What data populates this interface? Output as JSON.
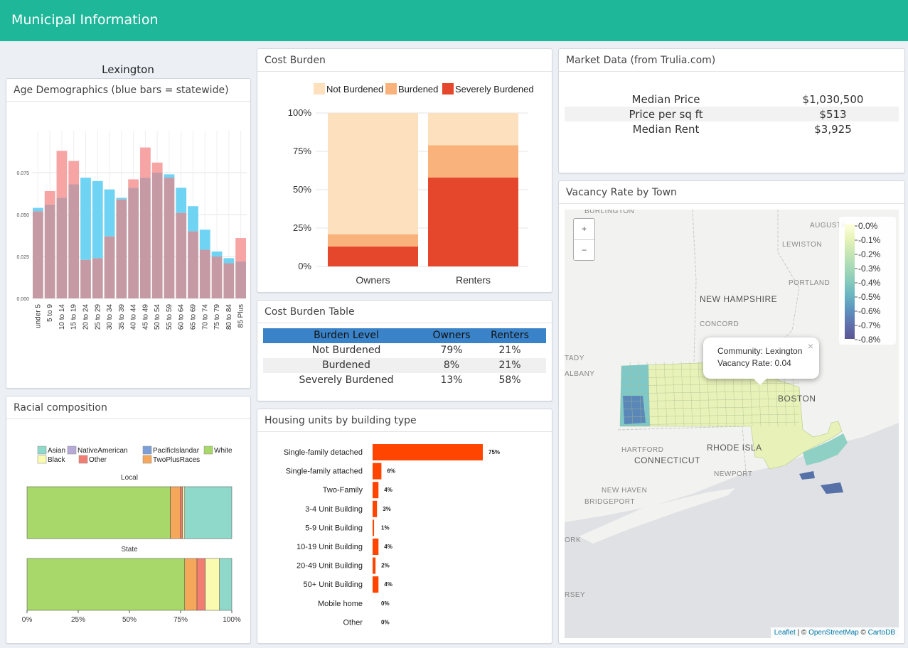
{
  "app": {
    "title": "Municipal Information"
  },
  "town": "Lexington",
  "age": {
    "title": "Age Demographics (blue bars = statewide)",
    "chart_data": {
      "type": "bar",
      "categories": [
        "under 5",
        "5 to 9",
        "10 to 14",
        "15 to 19",
        "20 to 24",
        "25 to 29",
        "30 to 34",
        "35 to 39",
        "40 to 44",
        "45 to 49",
        "50 to 54",
        "55 to 59",
        "60 to 64",
        "65 to 69",
        "70 to 74",
        "75 to 79",
        "80 to 84",
        "85 Plus"
      ],
      "series": [
        {
          "name": "Local",
          "values": [
            0.052,
            0.064,
            0.088,
            0.082,
            0.023,
            0.024,
            0.037,
            0.059,
            0.071,
            0.09,
            0.081,
            0.072,
            0.051,
            0.04,
            0.029,
            0.025,
            0.021,
            0.036
          ]
        },
        {
          "name": "Statewide",
          "values": [
            0.054,
            0.056,
            0.06,
            0.068,
            0.072,
            0.07,
            0.065,
            0.06,
            0.066,
            0.072,
            0.075,
            0.074,
            0.066,
            0.055,
            0.041,
            0.028,
            0.024,
            0.022
          ]
        }
      ],
      "yticks": [
        "0.000",
        "0.025",
        "0.050",
        "0.075"
      ],
      "ylim": [
        0,
        0.1
      ],
      "colors": {
        "local": "#f6a4a4",
        "state": "#6fd3f4",
        "overlap": "#c59aa5"
      }
    }
  },
  "racial": {
    "title": "Racial composition",
    "legend": [
      {
        "label": "Asian",
        "color": "#8ed9c9"
      },
      {
        "label": "NativeAmerican",
        "color": "#b7a9d8"
      },
      {
        "label": "PacificIslandar",
        "color": "#7b9fd6"
      },
      {
        "label": "White",
        "color": "#a8d86a"
      },
      {
        "label": "Black",
        "color": "#fbfbb0"
      },
      {
        "label": "Other",
        "color": "#f27d72"
      },
      {
        "label": "TwoPlusRaces",
        "color": "#f5a75a"
      }
    ],
    "chart_data": {
      "type": "bar",
      "categories": [
        "Local",
        "State"
      ],
      "series": [
        {
          "name": "White",
          "values": [
            0.7,
            0.77
          ]
        },
        {
          "name": "TwoPlusRaces",
          "values": [
            0.05,
            0.06
          ]
        },
        {
          "name": "Other",
          "values": [
            0.01,
            0.04
          ]
        },
        {
          "name": "Black",
          "values": [
            0.01,
            0.07
          ]
        },
        {
          "name": "Asian",
          "values": [
            0.23,
            0.06
          ]
        }
      ],
      "xticks": [
        "0%",
        "25%",
        "50%",
        "75%",
        "100%"
      ]
    }
  },
  "cost_burden": {
    "title": "Cost Burden",
    "legend": [
      {
        "label": "Not Burdened",
        "color": "#fde1bf"
      },
      {
        "label": "Burdened",
        "color": "#f9b27b"
      },
      {
        "label": "Severely Burdened",
        "color": "#e4472c"
      }
    ],
    "chart_data": {
      "type": "bar",
      "categories": [
        "Owners",
        "Renters"
      ],
      "series": [
        {
          "name": "Severely Burdened",
          "values": [
            13,
            58
          ]
        },
        {
          "name": "Burdened",
          "values": [
            8,
            21
          ]
        },
        {
          "name": "Not Burdened",
          "values": [
            79,
            21
          ]
        }
      ],
      "yticks": [
        "0%",
        "25%",
        "50%",
        "75%",
        "100%"
      ]
    }
  },
  "cost_table": {
    "title": "Cost Burden Table",
    "headers": [
      "Burden Level",
      "Owners",
      "Renters"
    ],
    "rows": [
      {
        "level": "Not Burdened",
        "owners": "79%",
        "renters": "21%"
      },
      {
        "level": "Burdened",
        "owners": "8%",
        "renters": "21%"
      },
      {
        "level": "Severely Burdened",
        "owners": "13%",
        "renters": "58%"
      }
    ]
  },
  "housing": {
    "title": "Housing units by building type",
    "chart_data": {
      "type": "bar",
      "categories": [
        "Single-family detached",
        "Single-family attached",
        "Two-Family",
        "3-4 Unit Building",
        "5-9 Unit Building",
        "10-19 Unit Building",
        "20-49 Unit Building",
        "50+ Unit Building",
        "Mobile home",
        "Other"
      ],
      "values": [
        75,
        6,
        4,
        3,
        1,
        4,
        2,
        4,
        0,
        0
      ],
      "labels": [
        "75%",
        "6%",
        "4%",
        "3%",
        "1%",
        "4%",
        "2%",
        "4%",
        "0%",
        "0%"
      ],
      "color": "#ff4500"
    }
  },
  "market": {
    "title": "Market Data (from Trulia.com)",
    "rows": [
      {
        "label": "Median Price",
        "value": "$1,030,500"
      },
      {
        "label": "Price per sq ft",
        "value": "$513"
      },
      {
        "label": "Median Rent",
        "value": "$3,925"
      }
    ]
  },
  "vacancy": {
    "title": "Vacancy Rate by Town",
    "zoom_in": "+",
    "zoom_out": "−",
    "places": [
      "BURLINGTON",
      "AUGUSTA",
      "LEWISTON",
      "PORTLAND",
      "NEW HAMPSHIRE",
      "CONCORD",
      "TADY",
      "ALBANY",
      "BOSTON",
      "HARTFORD",
      "CONNECTICUT",
      "RHODE ISLA",
      "NEWPORT",
      "NEW HAVEN",
      "BRIDGEPORT",
      "ORK",
      "RSEY"
    ],
    "legend": [
      "0.0%",
      "-0.1%",
      "-0.2%",
      "-0.3%",
      "-0.4%",
      "-0.5%",
      "-0.6%",
      "-0.7%",
      "-0.8%"
    ],
    "popup": {
      "community": "Community: Lexington",
      "rate": "Vacancy Rate: 0.04",
      "close": "×"
    },
    "attribution": {
      "leaflet": "Leaflet",
      "sep1": " | © ",
      "osm": "OpenStreetMap",
      "sep2": " © ",
      "carto": "CartoDB"
    }
  }
}
